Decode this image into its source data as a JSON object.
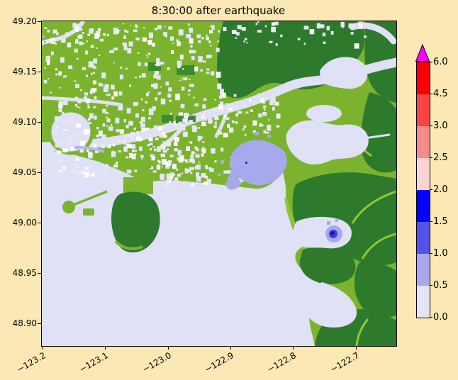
{
  "title": "8:30:00 after earthquake",
  "axes": {
    "y_ticks": [
      "49.20",
      "49.15",
      "49.10",
      "49.05",
      "49.00",
      "48.95",
      "48.90"
    ],
    "x_ticks": [
      "−123.2",
      "−123.1",
      "−123.0",
      "−122.9",
      "−122.8",
      "−122.7"
    ]
  },
  "colorbar": {
    "tick_labels": [
      "0.0",
      "0.5",
      "1.0",
      "1.5",
      "2.0",
      "2.5",
      "3.0",
      "4.5",
      "6.0"
    ],
    "segments": [
      {
        "range": "0.0-0.5",
        "color": "#E4E4F7"
      },
      {
        "range": "0.5-1.0",
        "color": "#A8A8EC"
      },
      {
        "range": "1.0-1.5",
        "color": "#5252EA"
      },
      {
        "range": "1.5-2.0",
        "color": "#0202FA"
      },
      {
        "range": "2.0-2.5",
        "color": "#FBD3D3"
      },
      {
        "range": "2.5-3.0",
        "color": "#F68B8B"
      },
      {
        "range": "3.0-4.5",
        "color": "#FB4343"
      },
      {
        "range": "4.5-6.0",
        "color": "#FB0000"
      }
    ],
    "over_color": "#F802F8"
  },
  "figure_colors": {
    "background": "#FCE8B5",
    "water_lavender": "#E0E0F6",
    "land_light_green": "#7CB32E",
    "land_bright_green": "#94C636",
    "land_dark_green": "#2D7A2D",
    "flood_periwinkle": "#A8A8EC",
    "flood_blue": "#3A3AE2"
  },
  "chart_data": {
    "type": "heatmap",
    "title": "8:30:00 after earthquake",
    "xlabel": "",
    "ylabel": "",
    "x_ticks": [
      -123.2,
      -123.1,
      -123.0,
      -122.9,
      -122.8,
      -122.7
    ],
    "y_ticks": [
      49.2,
      49.15,
      49.1,
      49.05,
      49.0,
      48.95,
      48.9
    ],
    "xlim": [
      -123.2,
      -122.64
    ],
    "ylim": [
      48.88,
      49.2
    ],
    "grid": false,
    "colorbar": {
      "position": "right",
      "orientation": "vertical",
      "levels": [
        0.0,
        0.5,
        1.0,
        1.5,
        2.0,
        2.5,
        3.0,
        4.5,
        6.0
      ],
      "level_colors": [
        "#E4E4F7",
        "#A8A8EC",
        "#5252EA",
        "#0202FA",
        "#FBD3D3",
        "#F68B8B",
        "#FB4343",
        "#FB0000"
      ],
      "extend": "max",
      "extend_color": "#F802F8"
    },
    "content_summary": {
      "land_low": "yellow-green raster cells covering the upper-left urban lowland, speckled with pale cells",
      "land_high": "dark green upland masses in the upper-right, lower-right and a peninsula at center-left",
      "water": "pale lavender (0-0.5 band) covering the sea in the lower-left, a winding river band across the upper half, bays and inland patches",
      "flooded_patches": [
        {
          "approx_lon": -122.87,
          "approx_lat": 49.06,
          "value_band": "0.5-1.0"
        },
        {
          "approx_lon": -122.73,
          "approx_lat": 48.99,
          "value_band": "1.0-2.0"
        }
      ]
    }
  }
}
